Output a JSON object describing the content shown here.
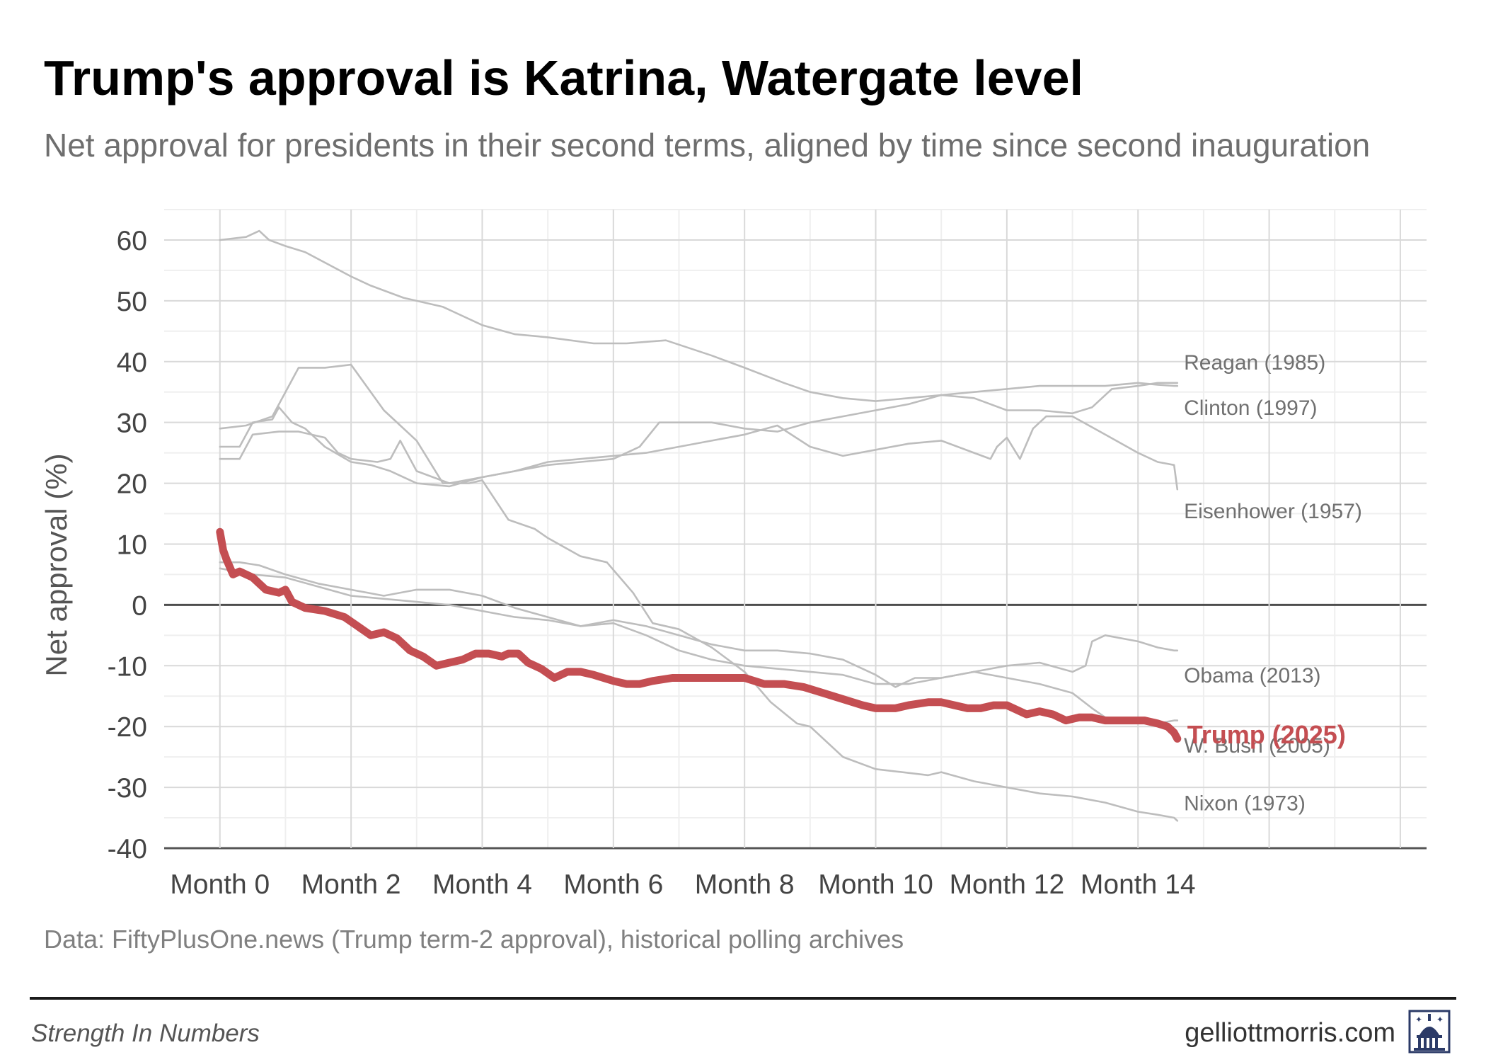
{
  "header": {
    "title": "Trump's approval is Katrina, Watergate level",
    "subtitle": "Net approval for presidents in their second terms, aligned by time since second inauguration"
  },
  "footer": {
    "source": "Data: FiftyPlusOne.news (Trump term-2 approval), historical polling archives",
    "brand": "Strength In Numbers",
    "site": "gelliottmorris.com",
    "logo_icon": "capitol-dome-icon"
  },
  "colors": {
    "highlight": "#c44e52",
    "others": "#bdbdbd",
    "zero_line": "#4d4d4d",
    "grid_major": "#d9d9d9",
    "grid_minor": "#efefef"
  },
  "chart_data": {
    "type": "line",
    "ylabel": "Net approval (%)",
    "xlabel": "",
    "ylim": [
      -40,
      65
    ],
    "xlim": [
      -0.85,
      18.4
    ],
    "yticks": [
      60,
      50,
      40,
      30,
      20,
      10,
      0,
      -10,
      -20,
      -30,
      -40
    ],
    "xticks": [
      {
        "value": 0,
        "label": "Month 0"
      },
      {
        "value": 2,
        "label": "Month 2"
      },
      {
        "value": 4,
        "label": "Month 4"
      },
      {
        "value": 6,
        "label": "Month 6"
      },
      {
        "value": 8,
        "label": "Month 8"
      },
      {
        "value": 10,
        "label": "Month 10"
      },
      {
        "value": 12,
        "label": "Month 12"
      },
      {
        "value": 14,
        "label": "Month 14"
      }
    ],
    "series": [
      {
        "name": "Eisenhower (1957)",
        "highlight": false,
        "label_at": [
          14.7,
          15.5
        ],
        "x": [
          0,
          0.4,
          0.6,
          0.75,
          1.0,
          1.3,
          2.0,
          2.3,
          2.8,
          3.4,
          4.0,
          4.5,
          5.0,
          5.7,
          6.2,
          6.8,
          7.5,
          8.0,
          8.6,
          9.0,
          9.5,
          10.0,
          10.5,
          11.0,
          11.5,
          12.0,
          12.5,
          13.0,
          13.5,
          14.0,
          14.3,
          14.55,
          14.6
        ],
        "y": [
          60,
          60.5,
          61.5,
          60,
          59,
          58,
          54,
          52.5,
          50.5,
          49,
          46,
          44.5,
          44,
          43,
          43,
          43.5,
          41,
          39,
          36.5,
          35,
          34,
          33.5,
          34,
          34.5,
          35,
          35.5,
          36,
          36,
          36,
          36.5,
          36.2,
          36,
          36
        ]
      },
      {
        "name": "Reagan (1985)",
        "highlight": false,
        "label_at": [
          14.7,
          40
        ],
        "x": [
          0,
          0.3,
          0.5,
          0.8,
          0.9,
          1.1,
          1.3,
          1.6,
          2.0,
          2.3,
          2.6,
          3.0,
          3.5,
          4.0,
          4.5,
          5.0,
          5.5,
          6.0,
          6.4,
          6.7,
          7.0,
          7.5,
          8.0,
          8.5,
          9.0,
          9.5,
          10.0,
          10.5,
          11.0,
          11.5,
          12.0,
          12.5,
          13.0,
          13.3,
          13.6,
          14.0,
          14.3,
          14.55,
          14.6
        ],
        "y": [
          26,
          26,
          30,
          30.5,
          32.5,
          30,
          29,
          26,
          23.5,
          23,
          22,
          20,
          19.5,
          21,
          22,
          23,
          23.5,
          24,
          26,
          30,
          30,
          30,
          29,
          28.5,
          30,
          31,
          32,
          33,
          34.5,
          34,
          32,
          32,
          31.5,
          32.5,
          35.5,
          36,
          36.5,
          36.5,
          36.5
        ]
      },
      {
        "name": "Clinton (1997)",
        "highlight": false,
        "label_at": [
          14.7,
          32.5
        ],
        "x": [
          0,
          0.3,
          0.5,
          0.9,
          1.2,
          1.6,
          1.8,
          2.0,
          2.4,
          2.6,
          2.75,
          3.0,
          3.5,
          4.0,
          4.5,
          5.0,
          5.5,
          6.0,
          6.5,
          7.0,
          7.5,
          8.0,
          8.5,
          9.0,
          9.5,
          10.0,
          10.5,
          11.0,
          11.5,
          11.75,
          11.85,
          12.0,
          12.2,
          12.4,
          12.6,
          13.0,
          13.5,
          14.0,
          14.3,
          14.55,
          14.6
        ],
        "y": [
          24,
          24,
          28,
          28.5,
          28.5,
          27.5,
          25,
          24,
          23.5,
          24,
          27,
          22,
          20,
          21,
          22,
          23.5,
          24,
          24.5,
          25,
          26,
          27,
          28,
          29.5,
          26,
          24.5,
          25.5,
          26.5,
          27,
          25,
          24,
          26,
          27.5,
          24,
          29,
          31,
          31,
          28,
          25,
          23.5,
          23,
          19
        ]
      },
      {
        "name": "Obama (2013)",
        "highlight": false,
        "label_at": [
          14.7,
          -11.5
        ],
        "x": [
          0,
          0.3,
          0.6,
          1.0,
          1.5,
          2.0,
          2.5,
          3.0,
          3.5,
          4.0,
          4.5,
          5.0,
          5.5,
          6.0,
          6.5,
          7.0,
          7.5,
          8.0,
          8.5,
          9.0,
          9.5,
          10.0,
          10.3,
          10.6,
          11.0,
          11.5,
          12.0,
          12.5,
          13.0,
          13.2,
          13.3,
          13.5,
          14.0,
          14.3,
          14.55,
          14.6
        ],
        "y": [
          7,
          7,
          6.5,
          5,
          3.5,
          2.5,
          1.5,
          2.5,
          2.5,
          1.5,
          -0.5,
          -2,
          -3.5,
          -2.5,
          -3.5,
          -5,
          -6.5,
          -7.5,
          -7.5,
          -8,
          -9,
          -11.5,
          -13.5,
          -12,
          -12,
          -11,
          -10,
          -9.5,
          -11,
          -10,
          -6,
          -5,
          -6,
          -7,
          -7.5,
          -7.5
        ]
      },
      {
        "name": "W. Bush (2005)",
        "highlight": false,
        "label_at": [
          14.7,
          -23
        ],
        "x": [
          0,
          0.5,
          1.0,
          1.5,
          2.0,
          2.5,
          3.0,
          3.5,
          4.0,
          4.5,
          5.0,
          5.5,
          6.0,
          6.5,
          7.0,
          7.5,
          8.0,
          8.5,
          9.0,
          9.5,
          10.0,
          10.5,
          11.0,
          11.5,
          12.0,
          12.5,
          13.0,
          13.3,
          13.5,
          14.0,
          14.3,
          14.55,
          14.6
        ],
        "y": [
          6,
          5,
          4.5,
          3,
          1.5,
          1,
          0.5,
          0,
          -1,
          -2,
          -2.5,
          -3.5,
          -3,
          -5,
          -7.5,
          -9,
          -10,
          -10.5,
          -11,
          -11.5,
          -13,
          -13,
          -12,
          -11,
          -12,
          -13,
          -14.5,
          -17,
          -18.5,
          -19,
          -19.5,
          -19,
          -19
        ]
      },
      {
        "name": "Nixon (1973)",
        "highlight": false,
        "label_at": [
          14.7,
          -32.5
        ],
        "x": [
          0,
          0.4,
          0.8,
          1.2,
          1.6,
          2.0,
          2.5,
          3.0,
          3.4,
          3.8,
          4.0,
          4.4,
          4.8,
          5.0,
          5.5,
          5.9,
          6.3,
          6.6,
          7.0,
          7.5,
          8.0,
          8.4,
          8.8,
          9.0,
          9.5,
          10.0,
          10.4,
          10.8,
          11.0,
          11.5,
          12.0,
          12.5,
          13.0,
          13.5,
          14.0,
          14.3,
          14.55,
          14.6
        ],
        "y": [
          29,
          29.5,
          31,
          39,
          39,
          39.5,
          32,
          27,
          20,
          20,
          20.5,
          14,
          12.5,
          11,
          8,
          7,
          2,
          -3,
          -4,
          -7,
          -11,
          -16,
          -19.5,
          -20,
          -25,
          -27,
          -27.5,
          -28,
          -27.5,
          -29,
          -30,
          -31,
          -31.5,
          -32.5,
          -34,
          -34.5,
          -35,
          -35.5
        ]
      },
      {
        "name": "Trump (2025)",
        "highlight": true,
        "label_at": [
          14.75,
          -21.5
        ],
        "x": [
          0,
          0.05,
          0.1,
          0.2,
          0.3,
          0.5,
          0.7,
          0.9,
          1.0,
          1.1,
          1.3,
          1.6,
          1.9,
          2.1,
          2.3,
          2.5,
          2.7,
          2.9,
          3.1,
          3.3,
          3.5,
          3.7,
          3.9,
          4.1,
          4.3,
          4.4,
          4.55,
          4.7,
          4.9,
          5.1,
          5.3,
          5.5,
          5.7,
          6.0,
          6.2,
          6.4,
          6.6,
          6.9,
          7.2,
          7.5,
          7.8,
          8.0,
          8.3,
          8.6,
          8.9,
          9.2,
          9.5,
          9.8,
          10.0,
          10.3,
          10.5,
          10.8,
          11.0,
          11.2,
          11.4,
          11.6,
          11.8,
          12.0,
          12.3,
          12.5,
          12.7,
          12.9,
          13.1,
          13.3,
          13.5,
          13.7,
          13.9,
          14.1,
          14.3,
          14.45,
          14.55,
          14.6
        ],
        "y": [
          12,
          9,
          7.5,
          5,
          5.5,
          4.5,
          2.5,
          2,
          2.5,
          0.5,
          -0.5,
          -1,
          -2,
          -3.5,
          -5,
          -4.5,
          -5.5,
          -7.5,
          -8.5,
          -10,
          -9.5,
          -9,
          -8,
          -8,
          -8.5,
          -8,
          -8,
          -9.5,
          -10.5,
          -12,
          -11,
          -11,
          -11.5,
          -12.5,
          -13,
          -13,
          -12.5,
          -12,
          -12,
          -12,
          -12,
          -12,
          -13,
          -13,
          -13.5,
          -14.5,
          -15.5,
          -16.5,
          -17,
          -17,
          -16.5,
          -16,
          -16,
          -16.5,
          -17,
          -17,
          -16.5,
          -16.5,
          -18,
          -17.5,
          -18,
          -19,
          -18.5,
          -18.5,
          -19,
          -19,
          -19,
          -19,
          -19.5,
          -20,
          -21,
          -22
        ]
      }
    ]
  }
}
